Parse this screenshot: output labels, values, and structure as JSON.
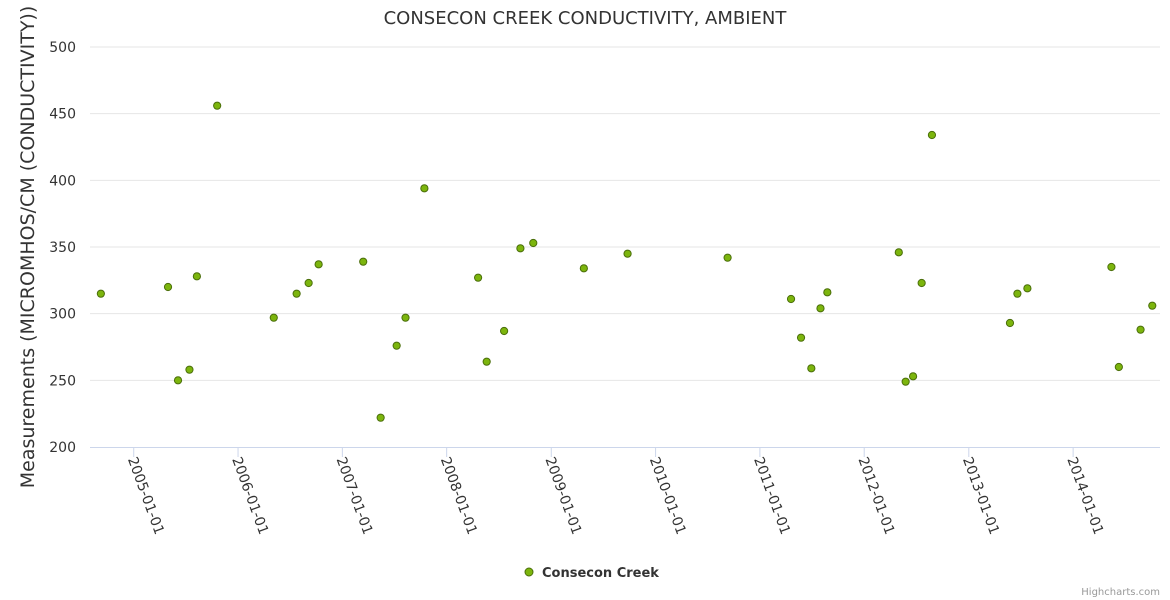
{
  "chart_data": {
    "type": "scatter",
    "title": "CONSECON CREEK CONDUCTIVITY, AMBIENT",
    "ylabel": "Measurements (MICROMHOS/CM (CONDUCTIVITY))",
    "xlabel": "",
    "ylim": [
      200,
      500
    ],
    "yticks": [
      200,
      250,
      300,
      350,
      400,
      450,
      500
    ],
    "xlim": [
      "2004-08-01",
      "2014-11-01"
    ],
    "xticks": [
      "2005-01-01",
      "2006-01-01",
      "2007-01-01",
      "2008-01-01",
      "2009-01-01",
      "2010-01-01",
      "2011-01-01",
      "2012-01-01",
      "2013-01-01",
      "2014-01-01"
    ],
    "grid": true,
    "legend_position": "bottom-center",
    "series": [
      {
        "name": "Consecon Creek",
        "color": "#7cb50d",
        "points": [
          {
            "x": "2004-09-08",
            "y": 315
          },
          {
            "x": "2005-05-01",
            "y": 320
          },
          {
            "x": "2005-06-05",
            "y": 250
          },
          {
            "x": "2005-07-15",
            "y": 258
          },
          {
            "x": "2005-08-10",
            "y": 328
          },
          {
            "x": "2005-10-20",
            "y": 456
          },
          {
            "x": "2006-05-06",
            "y": 297
          },
          {
            "x": "2006-07-25",
            "y": 315
          },
          {
            "x": "2006-09-05",
            "y": 323
          },
          {
            "x": "2006-10-10",
            "y": 337
          },
          {
            "x": "2007-03-15",
            "y": 339
          },
          {
            "x": "2007-05-15",
            "y": 222
          },
          {
            "x": "2007-07-10",
            "y": 276
          },
          {
            "x": "2007-08-10",
            "y": 297
          },
          {
            "x": "2007-10-15",
            "y": 394
          },
          {
            "x": "2008-04-20",
            "y": 327
          },
          {
            "x": "2008-05-20",
            "y": 264
          },
          {
            "x": "2008-07-20",
            "y": 287
          },
          {
            "x": "2008-09-15",
            "y": 349
          },
          {
            "x": "2008-10-30",
            "y": 353
          },
          {
            "x": "2009-04-25",
            "y": 334
          },
          {
            "x": "2009-09-25",
            "y": 345
          },
          {
            "x": "2010-09-10",
            "y": 342
          },
          {
            "x": "2011-04-20",
            "y": 311
          },
          {
            "x": "2011-05-25",
            "y": 282
          },
          {
            "x": "2011-06-30",
            "y": 259
          },
          {
            "x": "2011-08-01",
            "y": 304
          },
          {
            "x": "2011-08-25",
            "y": 316
          },
          {
            "x": "2012-05-01",
            "y": 346
          },
          {
            "x": "2012-05-25",
            "y": 249
          },
          {
            "x": "2012-06-20",
            "y": 253
          },
          {
            "x": "2012-07-20",
            "y": 323
          },
          {
            "x": "2012-08-25",
            "y": 434
          },
          {
            "x": "2013-05-25",
            "y": 293
          },
          {
            "x": "2013-06-20",
            "y": 315
          },
          {
            "x": "2013-07-25",
            "y": 319
          },
          {
            "x": "2014-05-15",
            "y": 335
          },
          {
            "x": "2014-06-10",
            "y": 260
          },
          {
            "x": "2014-08-25",
            "y": 288
          },
          {
            "x": "2014-10-05",
            "y": 306
          }
        ]
      }
    ]
  },
  "credit": "Highcharts.com"
}
